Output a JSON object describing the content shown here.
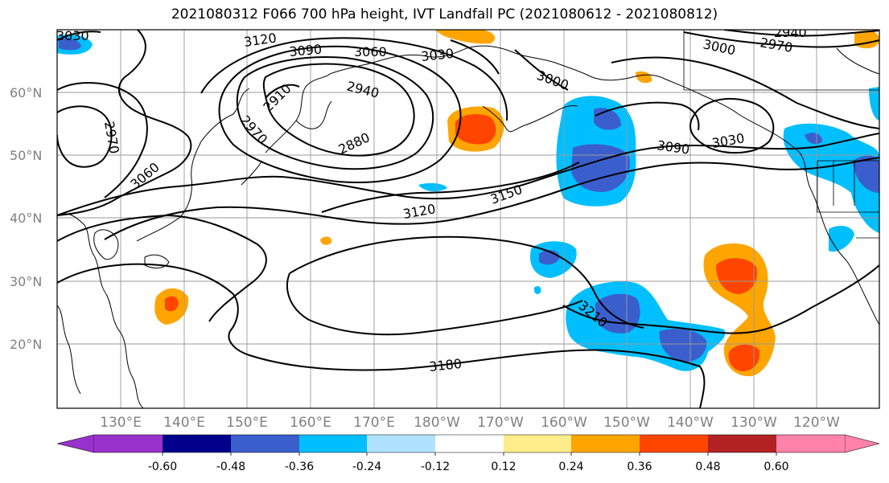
{
  "title": "2021080312 F066 700 hPa height, IVT Landfall PC (2021080612 - 2021080812)",
  "map": {
    "lat_ticks": [
      "60°N",
      "50°N",
      "40°N",
      "30°N",
      "20°N"
    ],
    "lon_ticks": [
      "130°E",
      "140°E",
      "150°E",
      "160°E",
      "170°E",
      "180°W",
      "170°W",
      "160°W",
      "150°W",
      "140°W",
      "130°W",
      "120°W"
    ],
    "contour_labels": [
      "3030",
      "3120",
      "3090",
      "3060",
      "3030",
      "3000",
      "2970",
      "2940",
      "2910",
      "2940",
      "2880",
      "2970",
      "3000",
      "2970",
      "3060",
      "3090",
      "3150",
      "3120",
      "3030",
      "3210",
      "3180"
    ]
  },
  "colorbar": {
    "colors": [
      "#9932cc",
      "#00008b",
      "#3a5fcd",
      "#00bfff",
      "#b0e2ff",
      "#ffffff",
      "#ffec8b",
      "#ffa500",
      "#ff4500",
      "#b22222",
      "#ff82ab"
    ],
    "tick_labels": [
      "-0.60",
      "-0.48",
      "-0.36",
      "-0.24",
      "-0.12",
      "0.12",
      "0.24",
      "0.36",
      "0.48",
      "0.60"
    ]
  }
}
